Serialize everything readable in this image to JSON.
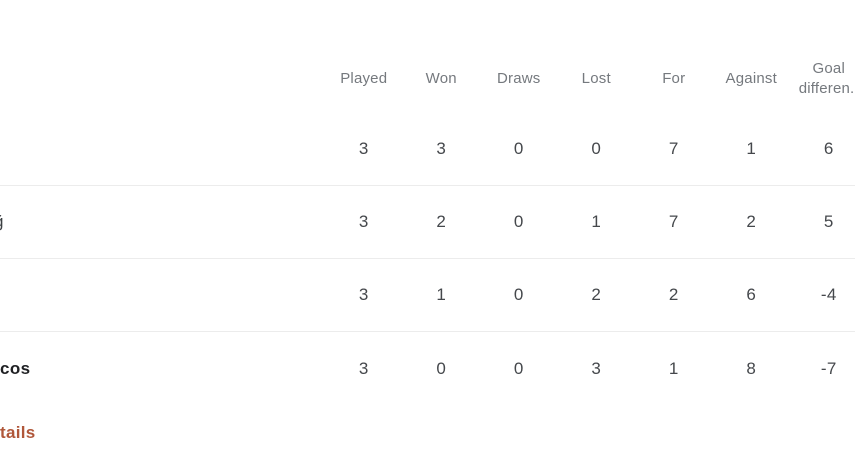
{
  "table": {
    "headers": {
      "played": "Played",
      "won": "Won",
      "draws": "Draws",
      "lost": "Lost",
      "for": "For",
      "against": "Against",
      "goal_diff_line1": "Goal",
      "goal_diff_line2": "differen.."
    },
    "rows": [
      {
        "team_fragment": "",
        "played": "3",
        "won": "3",
        "draws": "0",
        "lost": "0",
        "for": "7",
        "against": "1",
        "goal_diff": "6"
      },
      {
        "team_fragment": "ğ",
        "played": "3",
        "won": "2",
        "draws": "0",
        "lost": "1",
        "for": "7",
        "against": "2",
        "goal_diff": "5"
      },
      {
        "team_fragment": "",
        "played": "3",
        "won": "1",
        "draws": "0",
        "lost": "2",
        "for": "2",
        "against": "6",
        "goal_diff": "-4"
      },
      {
        "team_fragment": "cos",
        "played": "3",
        "won": "0",
        "draws": "0",
        "lost": "3",
        "for": "1",
        "against": "8",
        "goal_diff": "-7"
      }
    ]
  },
  "link": {
    "label": "tails"
  },
  "colors": {
    "header_text": "#75797e",
    "cell_text": "#45484c",
    "bold_team_text": "#202124",
    "link_text": "#b0573a",
    "divider": "#ececec",
    "background": "#ffffff"
  }
}
